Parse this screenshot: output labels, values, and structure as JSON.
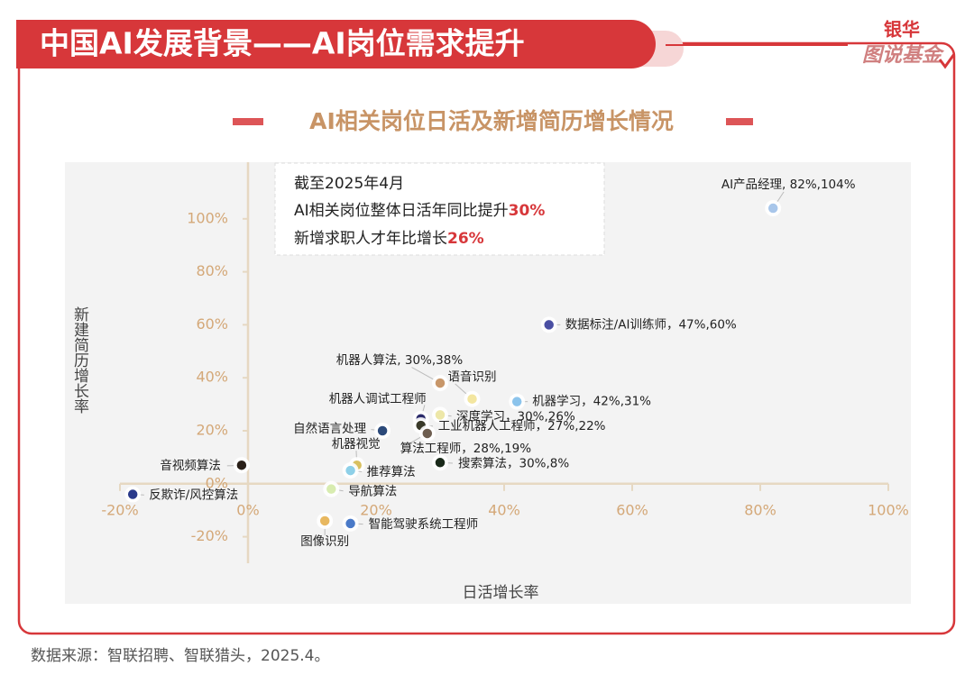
{
  "header": {
    "title": "中国AI发展背景——AI岗位需求提升",
    "logo_top": "银华",
    "logo_bottom": "图说基金"
  },
  "chart_data": {
    "type": "scatter",
    "title": "AI相关岗位日活及新增简历增长情况",
    "xlabel": "日活增长率",
    "ylabel": "新建简历增长率",
    "labels": [
      "AI产品经理, 82%,104%",
      "数据标注/AI训练师，47%,60%",
      "机器人算法, 30%,38%",
      "语音识别",
      "机器学习，42%,31%",
      "深度学习，30%,26%",
      "机器人调试工程师",
      "工业机器人工程师，27%,22%",
      "算法工程师，28%,19%",
      "自然语言处理",
      "机器视觉",
      "推荐算法",
      "搜索算法，30%,8%",
      "音视频算法",
      "反欺诈/风控算法",
      "导航算法",
      "智能驾驶系统工程师",
      "图像识别"
    ],
    "x": [
      82,
      47,
      30,
      35,
      42,
      30,
      27,
      27,
      28,
      21,
      17,
      16,
      30,
      -1,
      -18,
      13,
      16,
      12
    ],
    "y": [
      104,
      60,
      38,
      32,
      31,
      26,
      24.5,
      22,
      19,
      20,
      7,
      5,
      8,
      7,
      -4,
      -2,
      -15,
      -14
    ],
    "colors": [
      "#a8c6ea",
      "#4a4fa3",
      "#c8976a",
      "#f3e6a0",
      "#8cc4ec",
      "#ede7a8",
      "#2a2a6a",
      "#3a3a2a",
      "#6e5e50",
      "#2c4a7a",
      "#d8c060",
      "#8ed0e8",
      "#1a2a1a",
      "#2a2018",
      "#2a3a8a",
      "#d8ecb0",
      "#4a7ac8",
      "#e8b860"
    ],
    "xlim": [
      -20,
      100
    ],
    "ylim": [
      -30,
      120
    ],
    "xticks": [
      {
        "value": -20,
        "label": "-20%"
      },
      {
        "value": 0,
        "label": "0%"
      },
      {
        "value": 20,
        "label": "20%"
      },
      {
        "value": 40,
        "label": "40%"
      },
      {
        "value": 60,
        "label": "60%"
      },
      {
        "value": 80,
        "label": "80%"
      },
      {
        "value": 100,
        "label": "100%"
      }
    ],
    "yticks": [
      {
        "value": -20,
        "label": "-20%"
      },
      {
        "value": 0,
        "label": "0%"
      },
      {
        "value": 20,
        "label": "20%"
      },
      {
        "value": 40,
        "label": "40%"
      },
      {
        "value": 60,
        "label": "60%"
      },
      {
        "value": 80,
        "label": "80%"
      },
      {
        "value": 100,
        "label": "100%"
      }
    ],
    "annotation": {
      "line1": "截至2025年4月",
      "line2": "AI相关岗位整体日活年同比提升",
      "line2_highlight": "30%",
      "line3": "新增求职人才年比增长",
      "line3_highlight": "26%"
    }
  },
  "source": "数据来源：智联招聘、智联猎头，2025.4。"
}
